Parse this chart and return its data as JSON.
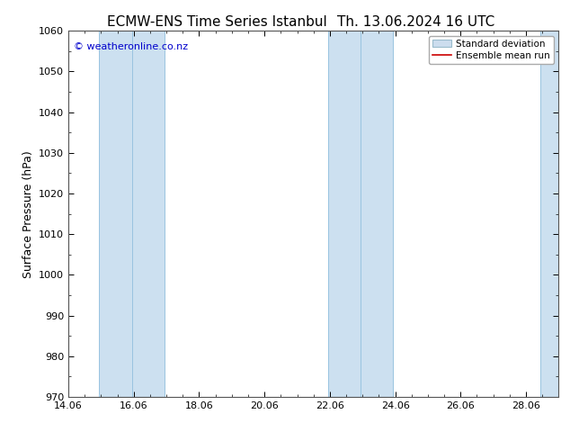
{
  "title_left": "ECMW-ENS Time Series Istanbul",
  "title_right": "Th. 13.06.2024 16 UTC",
  "ylabel": "Surface Pressure (hPa)",
  "watermark": "© weatheronline.co.nz",
  "watermark_color": "#0000cc",
  "ylim": [
    970,
    1060
  ],
  "yticks": [
    970,
    980,
    990,
    1000,
    1010,
    1020,
    1030,
    1040,
    1050,
    1060
  ],
  "xlim_start": 14.06,
  "xlim_end": 29.06,
  "xticks": [
    14.06,
    16.06,
    18.06,
    20.06,
    22.06,
    24.06,
    26.06,
    28.06
  ],
  "xtick_labels": [
    "14.06",
    "16.06",
    "18.06",
    "20.06",
    "22.06",
    "24.06",
    "26.06",
    "28.06"
  ],
  "shaded_bands": [
    {
      "x_start": 15.0,
      "x_end": 15.5
    },
    {
      "x_start": 16.0,
      "x_end": 17.0
    },
    {
      "x_start": 22.0,
      "x_end": 22.5
    },
    {
      "x_start": 23.0,
      "x_end": 24.0
    },
    {
      "x_start": 28.5,
      "x_end": 29.06
    }
  ],
  "band_color": "#cce0f0",
  "band_edge_color": "#99c4e0",
  "bg_color": "#ffffff",
  "plot_bg_color": "#ffffff",
  "legend_std_label": "Standard deviation",
  "legend_mean_label": "Ensemble mean run",
  "legend_mean_color": "#cc0000",
  "legend_std_facecolor": "#ccddee",
  "legend_std_edgecolor": "#99bbcc",
  "title_fontsize": 11,
  "axis_label_fontsize": 9,
  "tick_fontsize": 8,
  "watermark_fontsize": 8,
  "spine_color": "#555555"
}
